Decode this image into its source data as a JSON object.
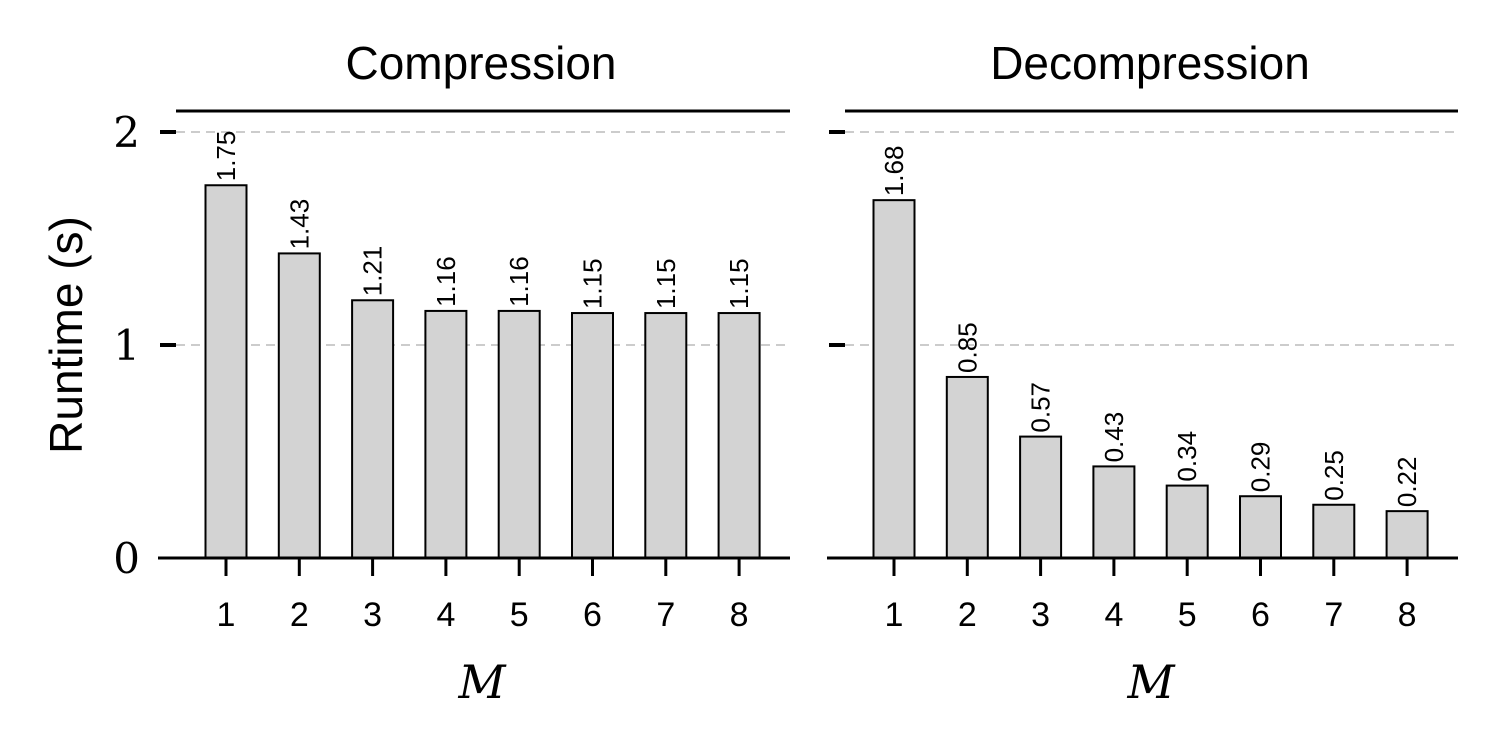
{
  "chart_data": [
    {
      "type": "bar",
      "title": "Compression",
      "xlabel": "M",
      "ylabel": "Runtime (s)",
      "categories": [
        "1",
        "2",
        "3",
        "4",
        "5",
        "6",
        "7",
        "8"
      ],
      "values": [
        1.75,
        1.43,
        1.21,
        1.16,
        1.16,
        1.15,
        1.15,
        1.15
      ],
      "data_labels": [
        "1.75",
        "1.43",
        "1.21",
        "1.16",
        "1.16",
        "1.15",
        "1.15",
        "1.15"
      ],
      "yticks": [
        "0",
        "1",
        "2"
      ],
      "ylim": [
        0,
        2.1
      ],
      "grid": "horizontal dashed at 1 and 2",
      "bar_color": "#d3d3d3",
      "edge_color": "#000000"
    },
    {
      "type": "bar",
      "title": "Decompression",
      "xlabel": "M",
      "ylabel": "",
      "categories": [
        "1",
        "2",
        "3",
        "4",
        "5",
        "6",
        "7",
        "8"
      ],
      "values": [
        1.68,
        0.85,
        0.57,
        0.43,
        0.34,
        0.29,
        0.25,
        0.22
      ],
      "data_labels": [
        "1.68",
        "0.85",
        "0.57",
        "0.43",
        "0.34",
        "0.29",
        "0.25",
        "0.22"
      ],
      "yticks": [],
      "ylim": [
        0,
        2.1
      ],
      "grid": "horizontal dashed at 1 and 2",
      "bar_color": "#d3d3d3",
      "edge_color": "#000000"
    }
  ],
  "shared_ylabel": "Runtime (s)",
  "grid_color": "#cccccc"
}
